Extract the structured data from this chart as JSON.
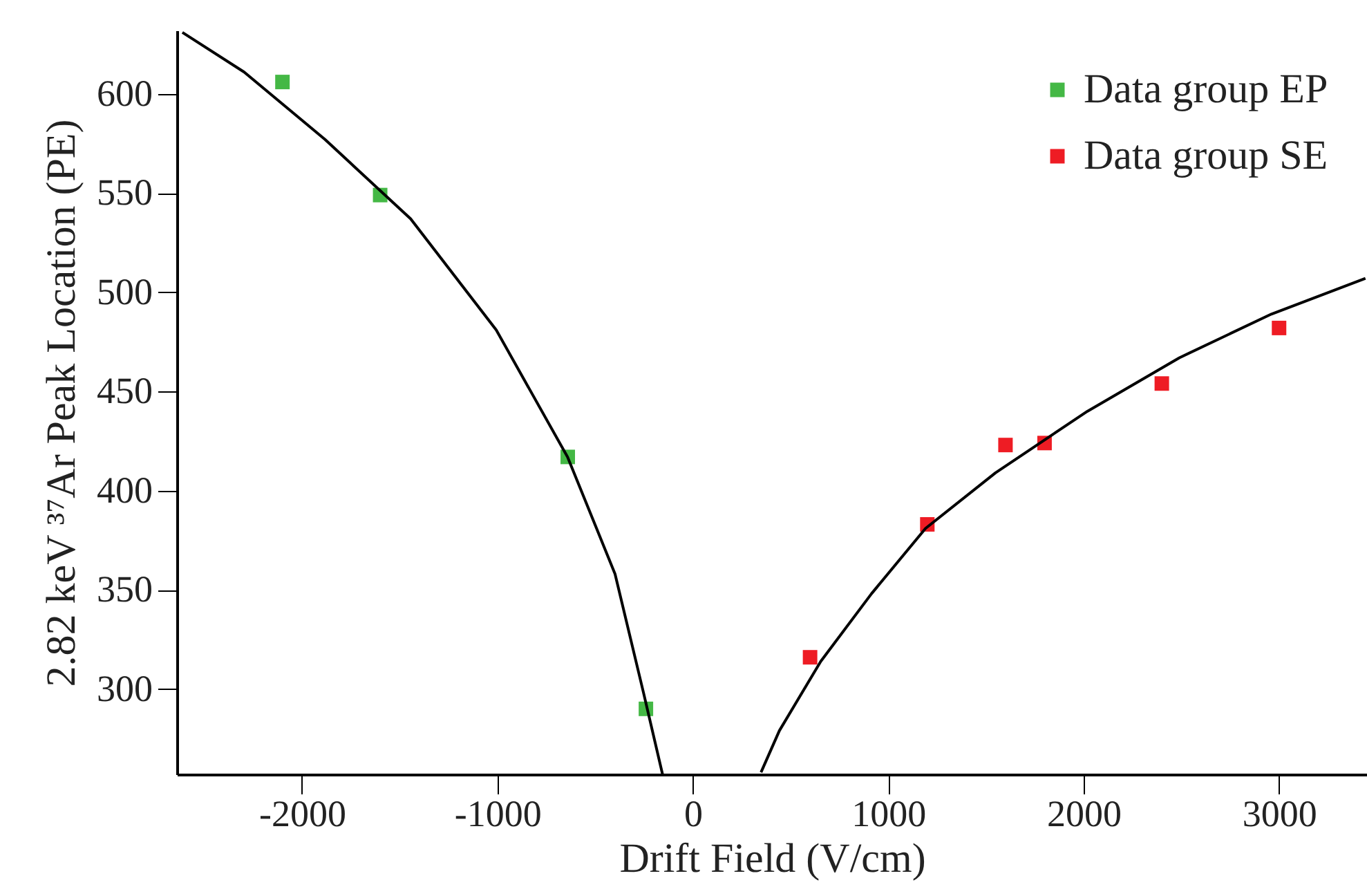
{
  "chart_data": {
    "type": "scatter",
    "xlabel": "Drift Field (V/cm)",
    "ylabel": "2.82 keV ³⁷Ar Peak Location (PE)",
    "xlim": [
      -2640,
      3450
    ],
    "ylim": [
      257,
      632
    ],
    "xticks": [
      -2000,
      -1000,
      0,
      1000,
      2000,
      3000
    ],
    "yticks": [
      300,
      350,
      400,
      450,
      500,
      550,
      600
    ],
    "legend": "top right",
    "marker": "square",
    "grid": false,
    "series": [
      {
        "name": "Data group EP",
        "color": "#44b845",
        "x": [
          -2100,
          -1600,
          -640,
          -240
        ],
        "values": [
          606,
          549,
          417,
          290
        ]
      },
      {
        "name": "Data group SE",
        "color": "#ee1c24",
        "x": [
          600,
          1200,
          1600,
          1800,
          2400,
          3000
        ],
        "values": [
          316,
          383,
          423,
          424,
          454,
          482
        ]
      },
      {
        "type": "line",
        "marker": "none",
        "color": "#000000",
        "x": [
          -2612,
          -2296,
          -1882,
          -1444,
          -1006,
          -641,
          -398,
          -252,
          -155
        ],
        "values": [
          631,
          611,
          577,
          537,
          481,
          417,
          358,
          298,
          257
        ]
      },
      {
        "type": "line",
        "marker": "none",
        "color": "#000000",
        "x": [
          349,
          443,
          655,
          914,
          1191,
          1549,
          2019,
          2490,
          2961,
          3442
        ],
        "values": [
          258,
          279,
          314,
          348,
          381,
          409,
          440,
          467,
          489,
          507
        ]
      }
    ]
  }
}
